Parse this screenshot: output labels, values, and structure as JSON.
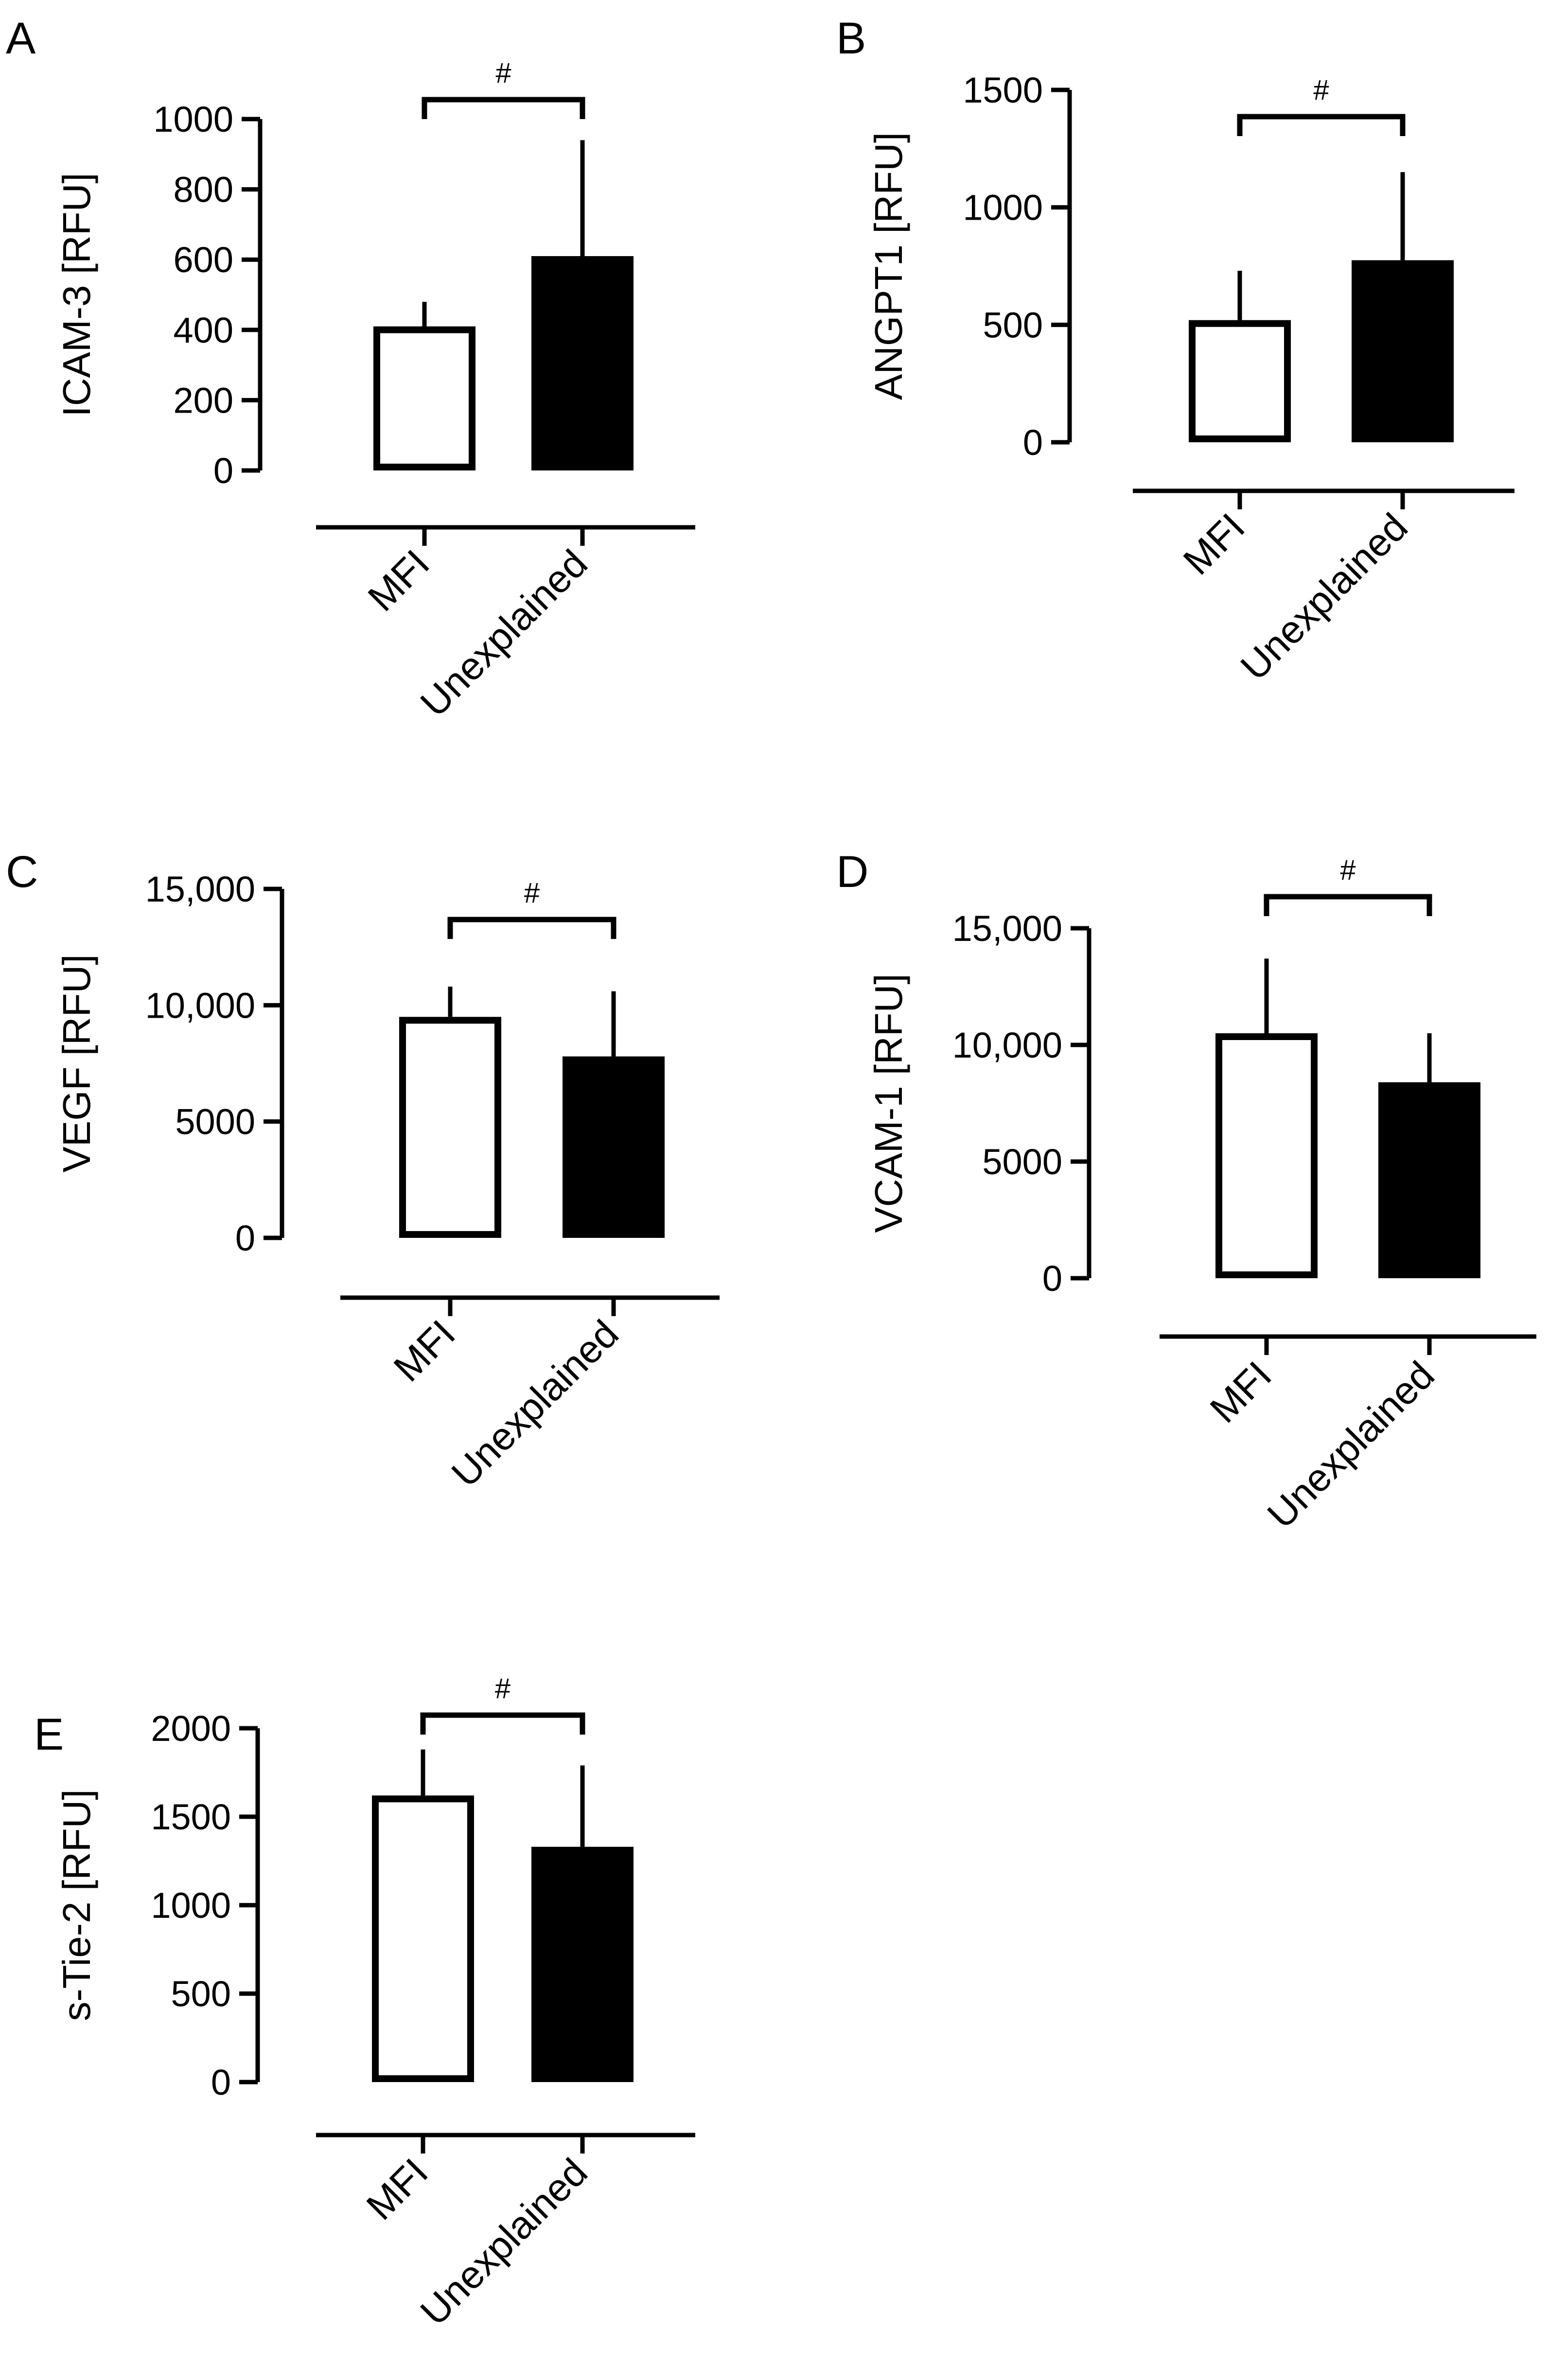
{
  "figure": {
    "background": "#ffffff",
    "bar_fill_mfi": "#ffffff",
    "bar_fill_unexplained": "#000000",
    "stroke_color": "#000000"
  },
  "chart_data": [
    {
      "panel": "A",
      "type": "bar",
      "ylabel": "ICAM-3 [RFU]",
      "categories": [
        "MFI",
        "Unexplained"
      ],
      "values": [
        410,
        610
      ],
      "errors": [
        70,
        330
      ],
      "ylim": [
        0,
        1000
      ],
      "yticks": [
        0,
        200,
        400,
        600,
        800,
        1000
      ],
      "ytick_labels": [
        "0",
        "200",
        "400",
        "600",
        "800",
        "1000"
      ],
      "significance": {
        "label": "#",
        "between": [
          "MFI",
          "Unexplained"
        ]
      }
    },
    {
      "panel": "B",
      "type": "bar",
      "ylabel": "ANGPT1 [RFU]",
      "categories": [
        "MFI",
        "Unexplained"
      ],
      "values": [
        520,
        775
      ],
      "errors": [
        210,
        375
      ],
      "ylim": [
        0,
        1500
      ],
      "yticks": [
        0,
        500,
        1000,
        1500
      ],
      "ytick_labels": [
        "0",
        "500",
        "1000",
        "1500"
      ],
      "significance": {
        "label": "#",
        "between": [
          "MFI",
          "Unexplained"
        ]
      }
    },
    {
      "panel": "C",
      "type": "bar",
      "ylabel": "VEGF [RFU]",
      "categories": [
        "MFI",
        "Unexplained"
      ],
      "values": [
        9500,
        7800
      ],
      "errors": [
        1300,
        2800
      ],
      "ylim": [
        0,
        15000
      ],
      "yticks": [
        0,
        5000,
        10000,
        15000
      ],
      "ytick_labels": [
        "0",
        "5000",
        "10,000",
        "15,000"
      ],
      "significance": {
        "label": "#",
        "between": [
          "MFI",
          "Unexplained"
        ]
      }
    },
    {
      "panel": "D",
      "type": "bar",
      "ylabel": "VCAM-1 [RFU]",
      "categories": [
        "MFI",
        "Unexplained"
      ],
      "values": [
        10500,
        8400
      ],
      "errors": [
        3200,
        2100
      ],
      "ylim": [
        0,
        15000
      ],
      "yticks": [
        0,
        5000,
        10000,
        15000
      ],
      "ytick_labels": [
        "0",
        "5000",
        "10,000",
        "15,000"
      ],
      "significance": {
        "label": "#",
        "between": [
          "MFI",
          "Unexplained"
        ]
      }
    },
    {
      "panel": "E",
      "type": "bar",
      "ylabel": "s-Tie-2 [RFU]",
      "categories": [
        "MFI",
        "Unexplained"
      ],
      "values": [
        1620,
        1330
      ],
      "errors": [
        260,
        460
      ],
      "ylim": [
        0,
        2000
      ],
      "yticks": [
        0,
        500,
        1000,
        1500,
        2000
      ],
      "ytick_labels": [
        "0",
        "500",
        "1000",
        "1500",
        "2000"
      ],
      "significance": {
        "label": "#",
        "between": [
          "MFI",
          "Unexplained"
        ]
      }
    }
  ]
}
